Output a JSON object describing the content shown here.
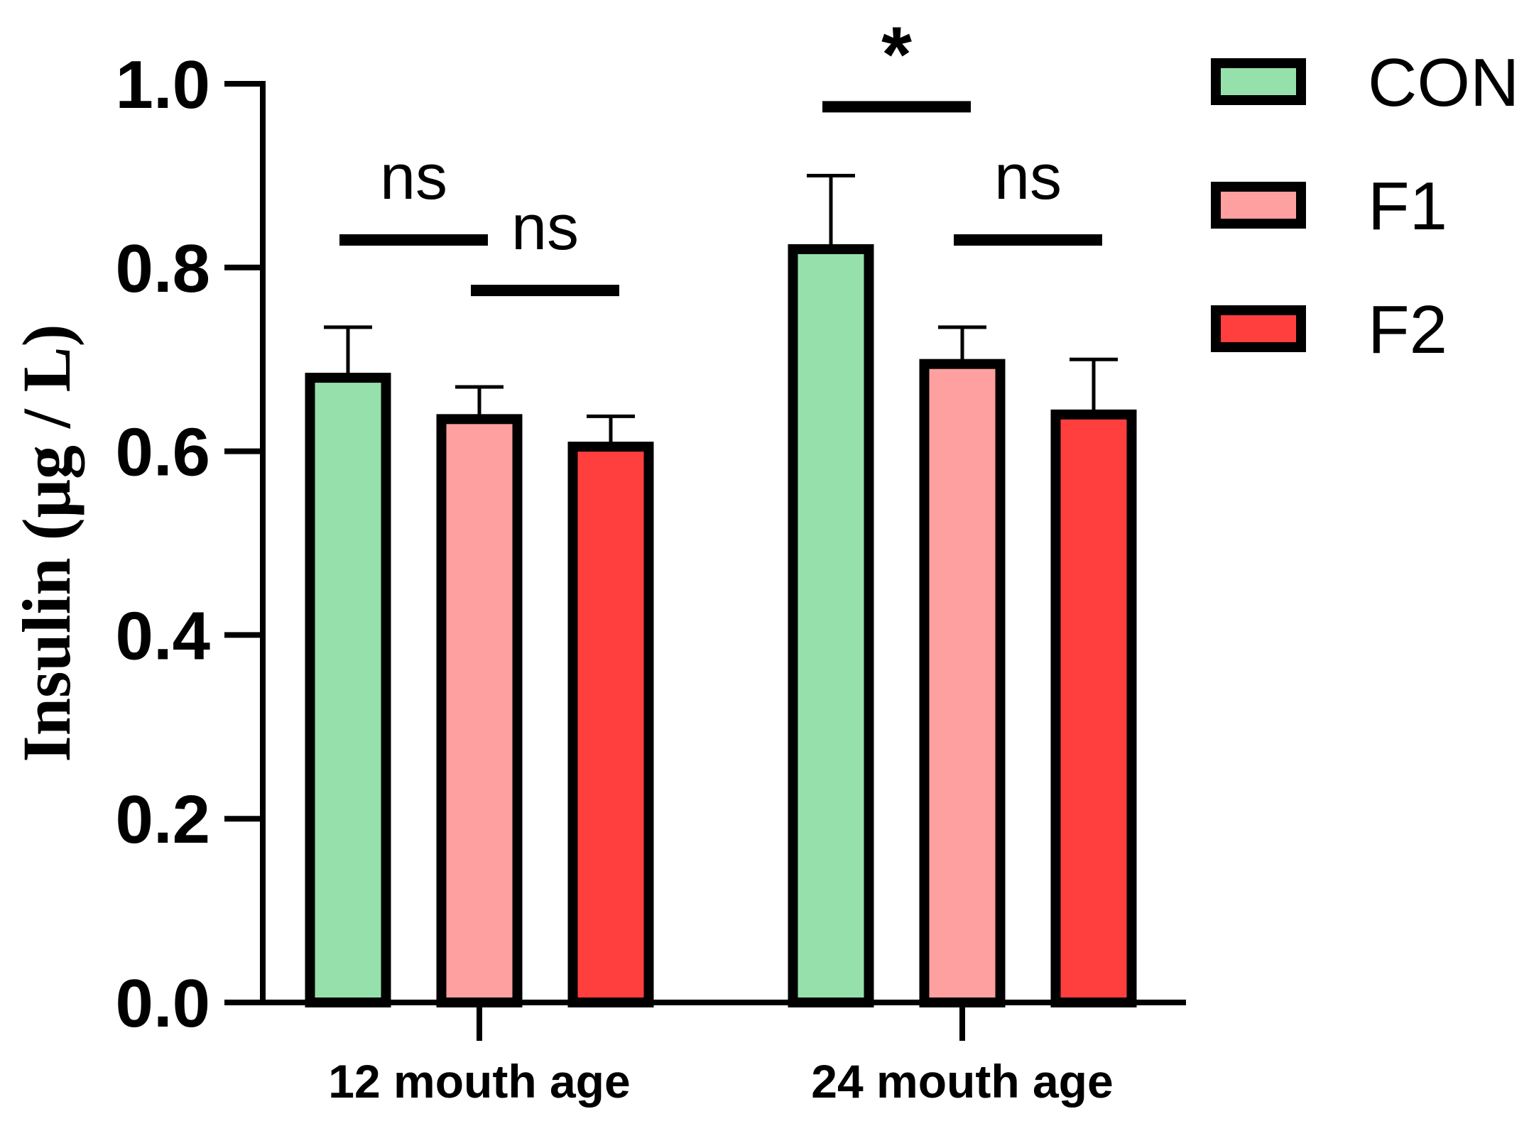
{
  "chart_data": {
    "type": "bar",
    "title": "",
    "xlabel": "",
    "ylabel": "Insulin (μg / L)",
    "ylim": [
      0,
      1.0
    ],
    "yticks": [
      0.0,
      0.2,
      0.4,
      0.6,
      0.8,
      1.0
    ],
    "ytick_labels": [
      "0.0",
      "0.2",
      "0.4",
      "0.6",
      "0.8",
      "1.0"
    ],
    "grid": false,
    "categories": [
      "12 mouth age",
      "24 mouth age"
    ],
    "series": [
      {
        "name": "CON",
        "color": "#96e0ac",
        "values": [
          0.68,
          0.82
        ],
        "errors": [
          0.055,
          0.08
        ]
      },
      {
        "name": "F1",
        "color": "#ffa0a0",
        "values": [
          0.635,
          0.695
        ],
        "errors": [
          0.035,
          0.04
        ]
      },
      {
        "name": "F2",
        "color": "#ff3e3e",
        "values": [
          0.605,
          0.64
        ],
        "errors": [
          0.033,
          0.06
        ]
      }
    ],
    "legend_position": "top-right",
    "annotations": [
      {
        "category": 0,
        "between": [
          "CON",
          "F1"
        ],
        "text": "ns",
        "y": 0.83
      },
      {
        "category": 0,
        "between": [
          "F1",
          "F2"
        ],
        "text": "ns",
        "y": 0.775
      },
      {
        "category": 1,
        "between": [
          "CON",
          "F1"
        ],
        "text": "*",
        "y": 0.975
      },
      {
        "category": 1,
        "between": [
          "F1",
          "F2"
        ],
        "text": "ns",
        "y": 0.83
      }
    ]
  }
}
